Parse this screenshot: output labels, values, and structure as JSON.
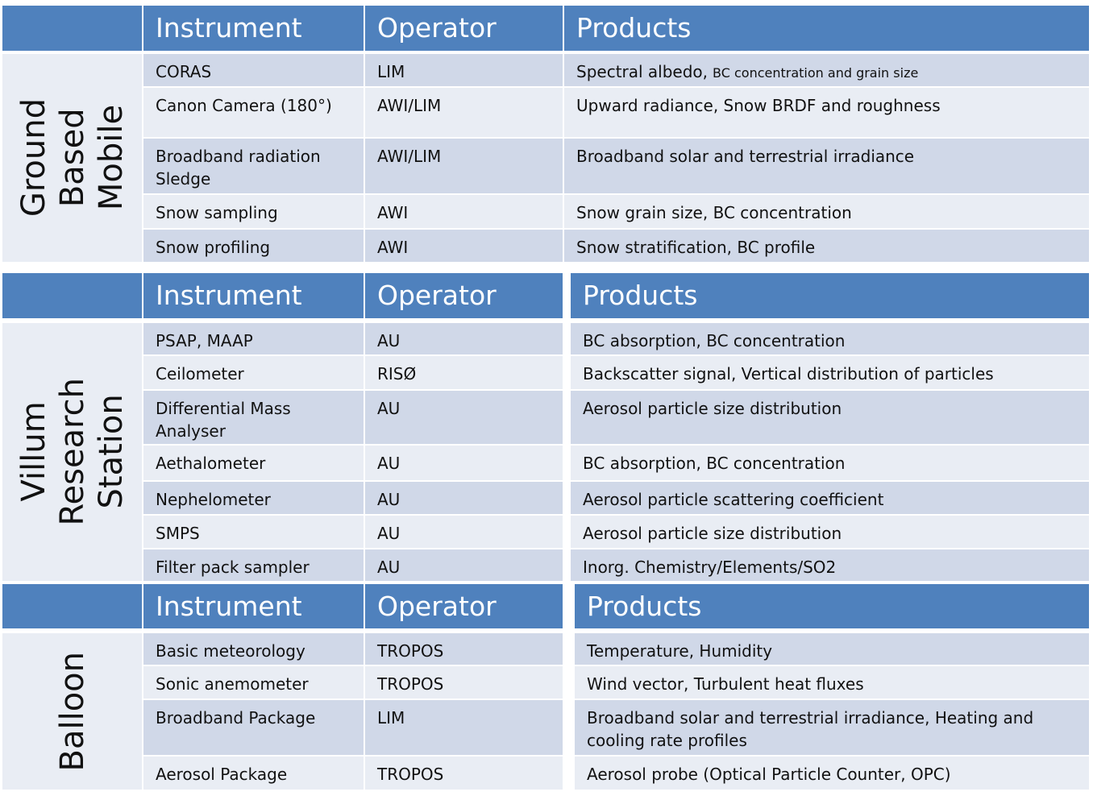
{
  "tables": [
    {
      "group": [
        "Ground",
        "Based",
        "Mobile"
      ],
      "header": [
        "Instrument",
        "Operator",
        "Products"
      ],
      "rows": [
        [
          "CORAS",
          "LIM",
          [
            "Spectral albedo,",
            "BC concentration and grain size"
          ]
        ],
        [
          "Canon Camera (180°)",
          "AWI/LIM",
          "Upward radiance, Snow BRDF and roughness"
        ],
        [
          "Broadband radiation Sledge",
          "AWI/LIM",
          "Broadband solar and terrestrial irradiance"
        ],
        [
          "Snow sampling",
          "AWI",
          "Snow grain size, BC concentration"
        ],
        [
          "Snow profiling",
          "AWI",
          "Snow stratification, BC profile"
        ]
      ]
    },
    {
      "group": [
        "Villum",
        "Research",
        "Station"
      ],
      "header": [
        "Instrument",
        "Operator",
        "Products"
      ],
      "rows": [
        [
          "PSAP, MAAP",
          "AU",
          "BC absorption, BC concentration"
        ],
        [
          "Ceilometer",
          "RISØ",
          "Backscatter signal, Vertical distribution of particles"
        ],
        [
          "Differential Mass Analyser",
          "AU",
          "Aerosol particle size distribution"
        ],
        [
          "Aethalometer",
          "AU",
          "BC absorption, BC concentration"
        ],
        [
          "Nephelometer",
          "AU",
          "Aerosol particle scattering coefficient"
        ],
        [
          "SMPS",
          "AU",
          "Aerosol particle size distribution"
        ],
        [
          "Filter pack sampler",
          "AU",
          "Inorg. Chemistry/Elements/SO2"
        ]
      ]
    },
    {
      "group": [
        "Balloon"
      ],
      "header": [
        "Instrument",
        "Operator",
        "Products"
      ],
      "rows": [
        [
          "Basic meteorology",
          "TROPOS",
          "Temperature, Humidity"
        ],
        [
          "Sonic anemometer",
          "TROPOS",
          "Wind vector, Turbulent heat fluxes"
        ],
        [
          "Broadband Package",
          "LIM",
          "Broadband solar and terrestrial irradiance, Heating and cooling rate profiles"
        ],
        [
          "Aerosol Package",
          "TROPOS",
          "Aerosol probe (Optical Particle Counter, OPC)"
        ]
      ]
    }
  ]
}
